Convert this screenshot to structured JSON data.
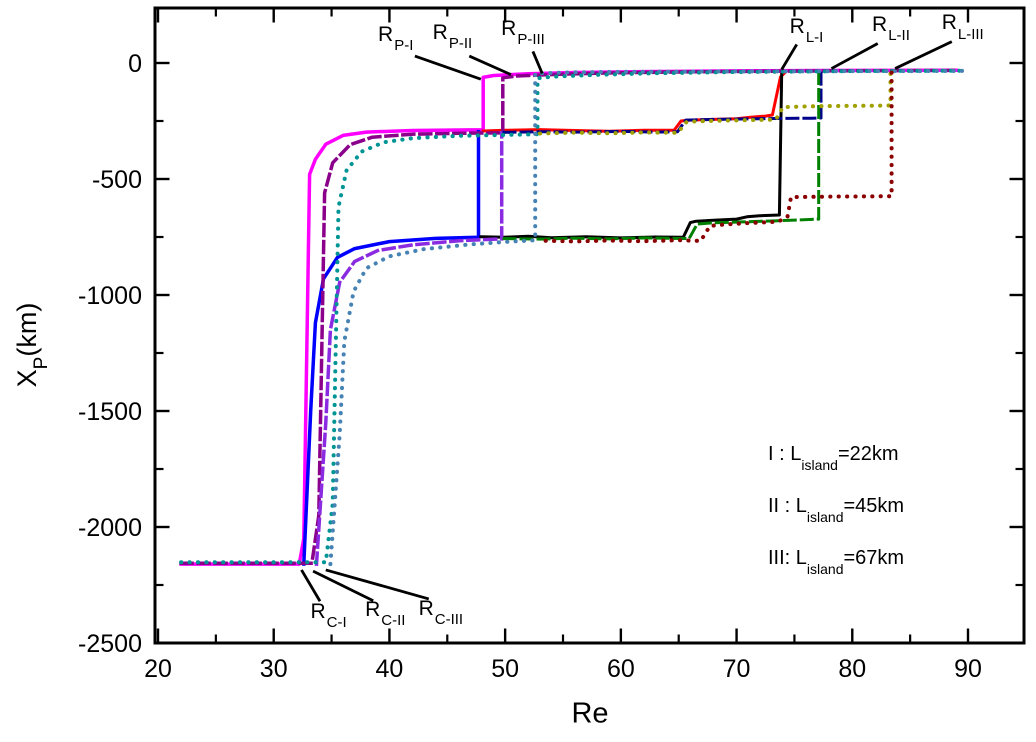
{
  "figure": {
    "background": "#ffffff",
    "y_axis_title": {
      "main": "X",
      "sub": "P",
      "suffix": "(km)"
    },
    "x_axis_title": "Re",
    "legend": {
      "items": [
        {
          "prefix": "I  : L",
          "sub": "island",
          "suffix": "=22km"
        },
        {
          "prefix": "II : L",
          "sub": "island",
          "suffix": "=45km"
        },
        {
          "prefix": "III: L",
          "sub": "island",
          "suffix": "=67km"
        }
      ]
    }
  },
  "chart_data": {
    "type": "line",
    "title": "",
    "xlabel": "Re",
    "ylabel": "X_P(km)",
    "xlim": [
      19.7,
      94.8
    ],
    "ylim": [
      -2500,
      240
    ],
    "grid": false,
    "x_ticks": {
      "major": [
        20,
        30,
        40,
        50,
        60,
        70,
        80,
        90
      ],
      "labels": [
        "20",
        "30",
        "40",
        "50",
        "60",
        "70",
        "80",
        "90"
      ],
      "minor": [
        25,
        35,
        45,
        55,
        65,
        75,
        85
      ]
    },
    "y_ticks": {
      "major": [
        0,
        -500,
        -1000,
        -1500,
        -2000,
        -2500
      ],
      "labels": [
        "0",
        "-500",
        "-1000",
        "-1500",
        "-2000",
        "-2500"
      ],
      "minor": [
        -250,
        -750,
        -1250,
        -1750,
        -2250
      ]
    },
    "critical_reynolds": {
      "R_C": {
        "I": 32.5,
        "II": 33.6,
        "III": 34.8
      },
      "R_P": {
        "I": 48.1,
        "II": 49.8,
        "III": 52.8
      },
      "R_L": {
        "I": 73.8,
        "II": 77.3,
        "III": 83.4
      }
    },
    "series": [
      {
        "name": "P-I",
        "case": "I (22km)",
        "color": "#FF00FF",
        "style": "solid",
        "width": 3.5,
        "points": [
          [
            22,
            -2160
          ],
          [
            32.2,
            -2160
          ],
          [
            32.6,
            -2050
          ],
          [
            33.1,
            -480
          ],
          [
            33.6,
            -415
          ],
          [
            34.5,
            -350
          ],
          [
            36,
            -312
          ],
          [
            38,
            -298
          ],
          [
            42,
            -291
          ],
          [
            46,
            -289
          ],
          [
            48.1,
            -288
          ],
          [
            48.1,
            -62
          ],
          [
            49,
            -54
          ],
          [
            52,
            -46
          ],
          [
            56,
            -41
          ],
          [
            62,
            -37
          ],
          [
            70,
            -34
          ],
          [
            80,
            -32
          ],
          [
            89,
            -31
          ]
        ]
      },
      {
        "name": "C-I",
        "case": "I (22km)",
        "color": "#0000FF",
        "style": "solid",
        "width": 3.5,
        "points": [
          [
            32.6,
            -2160
          ],
          [
            33.2,
            -1500
          ],
          [
            33.6,
            -1120
          ],
          [
            34.3,
            -930
          ],
          [
            35.5,
            -838
          ],
          [
            37,
            -800
          ],
          [
            40,
            -770
          ],
          [
            44,
            -756
          ],
          [
            47.7,
            -751
          ],
          [
            47.7,
            -296
          ]
        ]
      },
      {
        "name": "L-mid-I",
        "case": "I (22km)",
        "color": "#FF0000",
        "style": "solid",
        "width": 3,
        "points": [
          [
            48.1,
            -293
          ],
          [
            50,
            -290
          ],
          [
            53,
            -287
          ],
          [
            56,
            -291
          ],
          [
            59,
            -294
          ],
          [
            62,
            -290
          ],
          [
            64.6,
            -290
          ],
          [
            65.2,
            -250
          ],
          [
            66,
            -246
          ],
          [
            68,
            -243
          ],
          [
            70,
            -240
          ],
          [
            71.2,
            -234
          ],
          [
            72.5,
            -229
          ],
          [
            73.1,
            -224
          ],
          [
            73.8,
            -60
          ],
          [
            74.2,
            -40
          ]
        ]
      },
      {
        "name": "L-low-I",
        "case": "I (22km)",
        "color": "#000000",
        "style": "solid",
        "width": 3,
        "points": [
          [
            47.9,
            -749
          ],
          [
            50,
            -751
          ],
          [
            52,
            -747
          ],
          [
            54,
            -753
          ],
          [
            57,
            -749
          ],
          [
            60,
            -754
          ],
          [
            63,
            -750
          ],
          [
            65.4,
            -751
          ],
          [
            66,
            -688
          ],
          [
            66.5,
            -682
          ],
          [
            68,
            -678
          ],
          [
            70,
            -673
          ],
          [
            70.9,
            -663
          ],
          [
            72,
            -658
          ],
          [
            73.7,
            -655
          ],
          [
            73.9,
            -38
          ]
        ]
      },
      {
        "name": "P-II",
        "case": "II (45km)",
        "color": "#8B008B",
        "style": "dashed",
        "width": 3.5,
        "points": [
          [
            22,
            -2156
          ],
          [
            33.3,
            -2156
          ],
          [
            33.9,
            -1950
          ],
          [
            34.4,
            -560
          ],
          [
            35.1,
            -430
          ],
          [
            36.6,
            -352
          ],
          [
            38.5,
            -320
          ],
          [
            42,
            -307
          ],
          [
            46,
            -303
          ],
          [
            49.8,
            -301
          ],
          [
            49.8,
            -64
          ],
          [
            51,
            -56
          ],
          [
            55,
            -48
          ],
          [
            60,
            -42
          ],
          [
            68,
            -37
          ],
          [
            78,
            -34
          ],
          [
            89,
            -32
          ]
        ]
      },
      {
        "name": "C-II",
        "case": "II (45km)",
        "color": "#8A2BE2",
        "style": "dashed",
        "width": 3.5,
        "points": [
          [
            33.7,
            -2160
          ],
          [
            34.5,
            -1550
          ],
          [
            34.9,
            -1150
          ],
          [
            35.7,
            -945
          ],
          [
            37,
            -855
          ],
          [
            39,
            -808
          ],
          [
            42,
            -784
          ],
          [
            46,
            -766
          ],
          [
            49.7,
            -758
          ],
          [
            49.7,
            -301
          ]
        ]
      },
      {
        "name": "L-mid-II",
        "case": "II (45km)",
        "color": "#00008B",
        "style": "dashed",
        "width": 3,
        "points": [
          [
            49.9,
            -299
          ],
          [
            53,
            -296
          ],
          [
            56,
            -298
          ],
          [
            60,
            -295
          ],
          [
            63,
            -298
          ],
          [
            64.9,
            -296
          ],
          [
            65.6,
            -246
          ],
          [
            68,
            -243
          ],
          [
            71,
            -241
          ],
          [
            74,
            -239
          ],
          [
            76.5,
            -238
          ],
          [
            77.3,
            -237
          ],
          [
            77.3,
            -37
          ]
        ]
      },
      {
        "name": "L-low-II",
        "case": "II (45km)",
        "color": "#008000",
        "style": "dashed",
        "width": 3,
        "points": [
          [
            49.9,
            -757
          ],
          [
            53,
            -759
          ],
          [
            56,
            -755
          ],
          [
            59,
            -758
          ],
          [
            62,
            -754
          ],
          [
            65.9,
            -757
          ],
          [
            66.6,
            -694
          ],
          [
            68,
            -689
          ],
          [
            70.5,
            -685
          ],
          [
            73,
            -681
          ],
          [
            75,
            -677
          ],
          [
            77.1,
            -673
          ],
          [
            77.1,
            -41
          ]
        ]
      },
      {
        "name": "P-III",
        "case": "III (67km)",
        "color": "#009494",
        "style": "dotted",
        "width": 4,
        "points": [
          [
            22,
            -2152
          ],
          [
            34.5,
            -2152
          ],
          [
            35.1,
            -1900
          ],
          [
            35.6,
            -620
          ],
          [
            36.3,
            -462
          ],
          [
            37.6,
            -382
          ],
          [
            39.5,
            -342
          ],
          [
            42,
            -324
          ],
          [
            46,
            -314
          ],
          [
            50,
            -310
          ],
          [
            52.8,
            -307
          ],
          [
            52.8,
            -66
          ],
          [
            54,
            -59
          ],
          [
            58,
            -51
          ],
          [
            63,
            -44
          ],
          [
            70,
            -39
          ],
          [
            80,
            -35
          ],
          [
            89.5,
            -33
          ]
        ]
      },
      {
        "name": "C-III",
        "case": "III (67km)",
        "color": "#4682B4",
        "style": "dotted",
        "width": 4,
        "points": [
          [
            34.9,
            -2160
          ],
          [
            35.7,
            -1600
          ],
          [
            36.1,
            -1200
          ],
          [
            36.9,
            -985
          ],
          [
            38,
            -885
          ],
          [
            40,
            -833
          ],
          [
            43,
            -802
          ],
          [
            47,
            -782
          ],
          [
            50,
            -771
          ],
          [
            52.6,
            -764
          ],
          [
            52.6,
            -307
          ],
          [
            52.6,
            -45
          ],
          [
            56,
            -40
          ],
          [
            60,
            -38
          ],
          [
            65,
            -37
          ],
          [
            70,
            -36
          ],
          [
            75,
            -36
          ],
          [
            80,
            -35
          ],
          [
            85,
            -35
          ],
          [
            89.8,
            -34
          ]
        ]
      },
      {
        "name": "L-mid-III",
        "case": "III (67km)",
        "color": "#A0A000",
        "style": "dotted",
        "width": 4,
        "points": [
          [
            53,
            -304
          ],
          [
            56,
            -300
          ],
          [
            59,
            -303
          ],
          [
            62,
            -299
          ],
          [
            64.9,
            -301
          ],
          [
            65.7,
            -253
          ],
          [
            68,
            -249
          ],
          [
            71,
            -246
          ],
          [
            73.4,
            -244
          ],
          [
            74,
            -190
          ],
          [
            76,
            -187
          ],
          [
            79,
            -185
          ],
          [
            82,
            -184
          ],
          [
            83.3,
            -183
          ],
          [
            83.3,
            -38
          ]
        ]
      },
      {
        "name": "L-low-III",
        "case": "III (67km)",
        "color": "#8B0000",
        "style": "dotted",
        "width": 4,
        "points": [
          [
            53.5,
            -766
          ],
          [
            56,
            -769
          ],
          [
            59,
            -765
          ],
          [
            62,
            -768
          ],
          [
            65,
            -764
          ],
          [
            66.9,
            -767
          ],
          [
            67.7,
            -702
          ],
          [
            69,
            -696
          ],
          [
            71,
            -690
          ],
          [
            73.6,
            -684
          ],
          [
            74.4,
            -662
          ],
          [
            74.7,
            -578
          ],
          [
            78,
            -576
          ],
          [
            81,
            -575
          ],
          [
            83.4,
            -574
          ],
          [
            83.4,
            -39
          ]
        ]
      }
    ],
    "annotations": [
      {
        "main": "R",
        "sub": "P-I",
        "label": [
          40.5,
          108
        ],
        "leader": [
          [
            42.2,
            30
          ],
          [
            47.9,
            -70
          ]
        ]
      },
      {
        "main": "R",
        "sub": "P-II",
        "label": [
          45.4,
          116
        ],
        "leader": [
          [
            46.9,
            30
          ],
          [
            50.5,
            -50
          ]
        ]
      },
      {
        "main": "R",
        "sub": "P-III",
        "label": [
          51.5,
          134
        ],
        "leader": [
          [
            52.4,
            50
          ],
          [
            53.2,
            -45
          ]
        ]
      },
      {
        "main": "R",
        "sub": "L-I",
        "label": [
          76.0,
          142
        ],
        "leader": [
          [
            75.2,
            80
          ],
          [
            73.9,
            -28
          ]
        ]
      },
      {
        "main": "R",
        "sub": "L-II",
        "label": [
          83.3,
          150
        ],
        "leader": [
          [
            82.2,
            84
          ],
          [
            78.2,
            -24
          ]
        ]
      },
      {
        "main": "R",
        "sub": "L-III",
        "label": [
          89.5,
          158
        ],
        "leader": [
          [
            88.6,
            92
          ],
          [
            83.7,
            -24
          ]
        ]
      },
      {
        "main": "R",
        "sub": "C-I",
        "label": [
          34.7,
          -2380
        ],
        "leader": [
          [
            32.4,
            -2185
          ],
          [
            34.0,
            -2320
          ]
        ]
      },
      {
        "main": "R",
        "sub": "C-II",
        "label": [
          39.6,
          -2372
        ],
        "leader": [
          [
            33.4,
            -2190
          ],
          [
            38.6,
            -2318
          ]
        ]
      },
      {
        "main": "R",
        "sub": "C-III",
        "label": [
          44.4,
          -2365
        ],
        "leader": [
          [
            34.5,
            -2185
          ],
          [
            43.4,
            -2310
          ]
        ]
      }
    ]
  }
}
